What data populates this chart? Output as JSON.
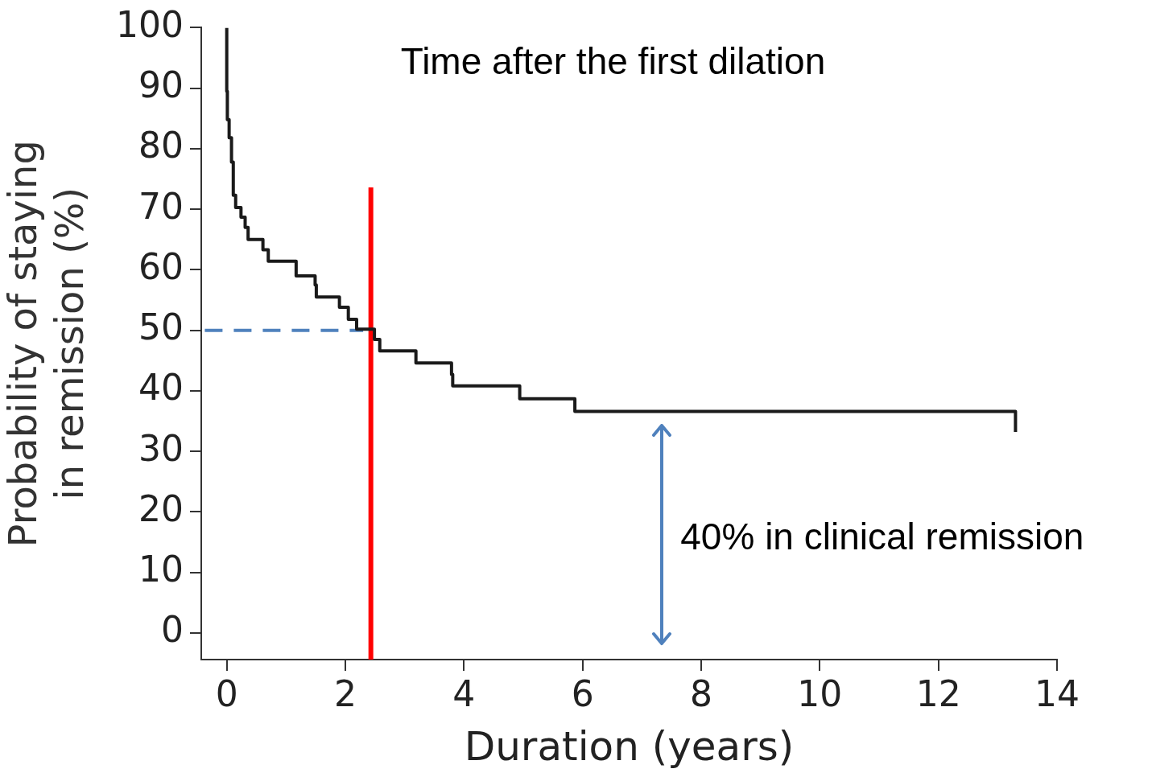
{
  "chart_data": {
    "type": "step",
    "title": "Time after the first dilation",
    "xlabel": "Duration (years)",
    "ylabel": "Probability of staying\nin remission (%)",
    "xlim": [
      -0.43,
      14
    ],
    "xticks": [
      0,
      2,
      4,
      6,
      8,
      10,
      12,
      14
    ],
    "ylim": [
      -4.4,
      100
    ],
    "yticks": [
      0,
      10,
      20,
      30,
      40,
      50,
      60,
      70,
      80,
      90,
      100
    ],
    "grid": false,
    "legend": false,
    "series": [
      {
        "color": "#1a1a1a",
        "x": [
          0,
          0.01,
          0.04,
          0.08,
          0.11,
          0.15,
          0.24,
          0.31,
          0.36,
          0.61,
          0.7,
          1.17,
          1.49,
          1.51,
          1.9,
          2.05,
          2.19,
          2.49,
          2.58,
          3.19,
          3.79,
          3.81,
          4.94,
          5.87,
          6.31,
          13.3,
          13.3
        ],
        "values": [
          100,
          89.5,
          84.8,
          81.8,
          77.8,
          72.3,
          70.3,
          68.7,
          67,
          65,
          63.3,
          61.4,
          59,
          57.5,
          55.5,
          53.8,
          51.8,
          50.2,
          48.5,
          46.6,
          44.6,
          42.7,
          40.8,
          38.7,
          36.6,
          36.6,
          33.2
        ]
      },
      {
        "type": "line",
        "color": "#4f81bd",
        "line_style": "dashed",
        "x": [
          -0.37,
          2.3
        ],
        "values": [
          50,
          50
        ]
      },
      {
        "type": "line",
        "color": "#ff0000",
        "x": [
          2.43,
          2.43
        ],
        "values": [
          -4.4,
          73.6
        ]
      }
    ],
    "annotations": [
      "40% in clinical remission"
    ]
  }
}
